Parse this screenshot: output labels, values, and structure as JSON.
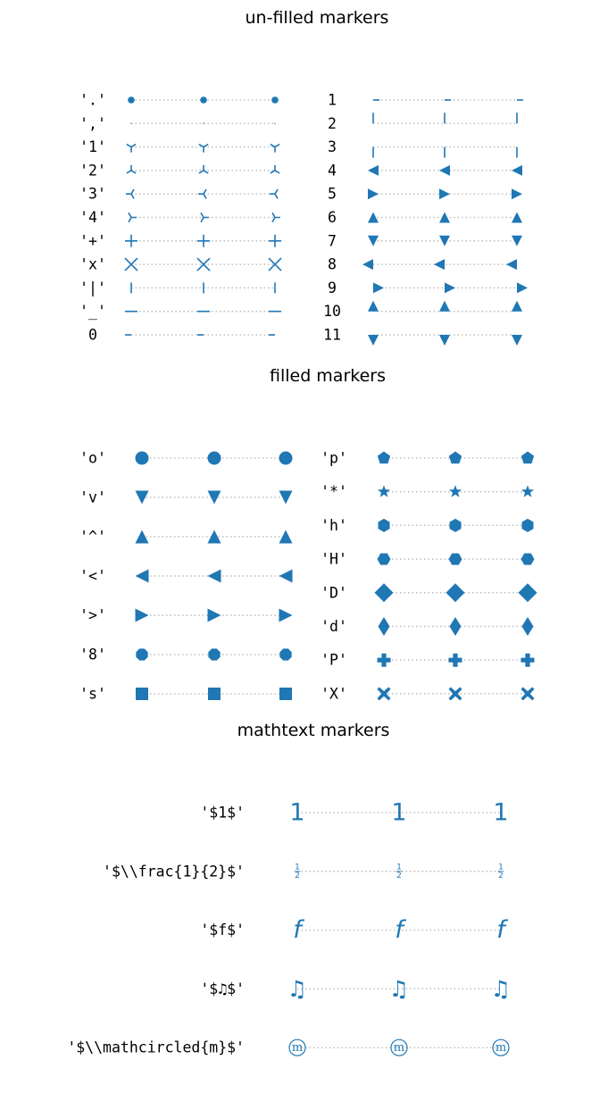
{
  "colors": {
    "marker": "#1f77b4",
    "guide": "#bdbdbd",
    "text": "#000000"
  },
  "chart_data": [
    {
      "type": "scatter",
      "title": "un-filled markers",
      "points_per_row": 3,
      "columns": [
        [
          {
            "label": "'.'",
            "marker": "point"
          },
          {
            "label": "','",
            "marker": "pixel"
          },
          {
            "label": "'1'",
            "marker": "tri_down"
          },
          {
            "label": "'2'",
            "marker": "tri_up"
          },
          {
            "label": "'3'",
            "marker": "tri_left"
          },
          {
            "label": "'4'",
            "marker": "tri_right"
          },
          {
            "label": "'+'",
            "marker": "plus"
          },
          {
            "label": "'x'",
            "marker": "x"
          },
          {
            "label": "'|'",
            "marker": "vline"
          },
          {
            "label": "'_'",
            "marker": "hline"
          },
          {
            "label": "0",
            "marker": "tickleft"
          }
        ],
        [
          {
            "label": "1",
            "marker": "tickright"
          },
          {
            "label": "2",
            "marker": "tickup"
          },
          {
            "label": "3",
            "marker": "tickdown"
          },
          {
            "label": "4",
            "marker": "caretleft"
          },
          {
            "label": "5",
            "marker": "caretright"
          },
          {
            "label": "6",
            "marker": "caretup"
          },
          {
            "label": "7",
            "marker": "caretdown"
          },
          {
            "label": "8",
            "marker": "caretleftbase"
          },
          {
            "label": "9",
            "marker": "caretrightbase"
          },
          {
            "label": "10",
            "marker": "caretupbase"
          },
          {
            "label": "11",
            "marker": "caretdownbase"
          }
        ]
      ]
    },
    {
      "type": "scatter",
      "title": "filled markers",
      "points_per_row": 3,
      "columns": [
        [
          {
            "label": "'o'",
            "marker": "circle"
          },
          {
            "label": "'v'",
            "marker": "triangle_down"
          },
          {
            "label": "'^'",
            "marker": "triangle_up"
          },
          {
            "label": "'<'",
            "marker": "triangle_left"
          },
          {
            "label": "'>'",
            "marker": "triangle_right"
          },
          {
            "label": "'8'",
            "marker": "octagon"
          },
          {
            "label": "'s'",
            "marker": "square"
          }
        ],
        [
          {
            "label": "'p'",
            "marker": "pentagon"
          },
          {
            "label": "'*'",
            "marker": "star"
          },
          {
            "label": "'h'",
            "marker": "hexagon1"
          },
          {
            "label": "'H'",
            "marker": "hexagon2"
          },
          {
            "label": "'D'",
            "marker": "diamond"
          },
          {
            "label": "'d'",
            "marker": "thin_diamond"
          },
          {
            "label": "'P'",
            "marker": "plus_filled"
          },
          {
            "label": "'X'",
            "marker": "x_filled"
          }
        ]
      ]
    },
    {
      "type": "scatter",
      "title": "mathtext markers",
      "points_per_row": 3,
      "columns": [
        [
          {
            "label": "'$1$'",
            "marker": "math",
            "glyph": "1"
          },
          {
            "label": "'$\\\\frac{1}{2}$'",
            "marker": "math-frac",
            "glyph": "1",
            "glyph2": "2"
          },
          {
            "label": "'$f$'",
            "marker": "math",
            "glyph": "f"
          },
          {
            "label": "'$♫$'",
            "marker": "math",
            "glyph": "♫"
          },
          {
            "label": "'$\\\\mathcircled{m}$'",
            "marker": "math-circled",
            "glyph": "m"
          }
        ]
      ]
    }
  ]
}
